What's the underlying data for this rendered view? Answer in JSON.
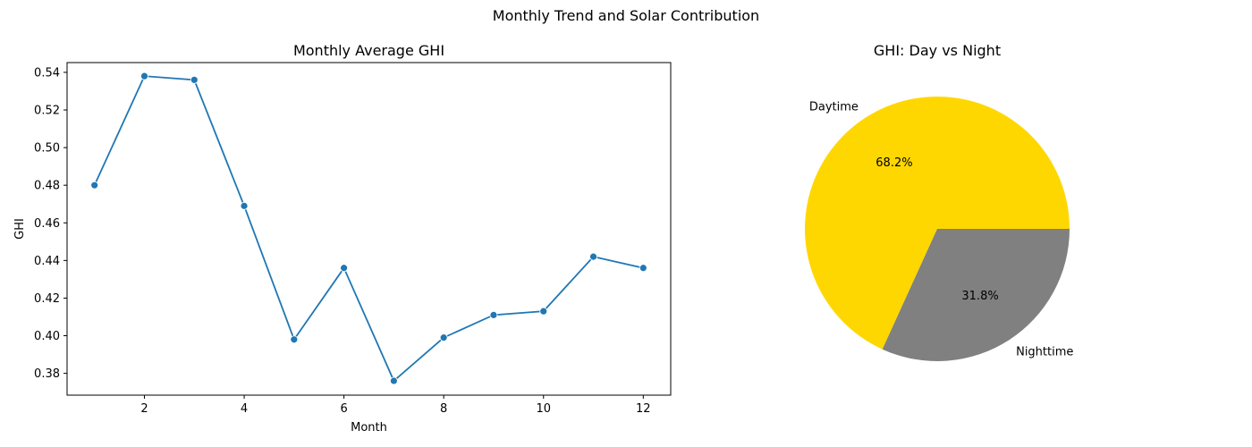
{
  "figure": {
    "suptitle": "Monthly Trend and Solar Contribution"
  },
  "chart_data": [
    {
      "type": "line",
      "title": "Monthly Average GHI",
      "xlabel": "Month",
      "ylabel": "GHI",
      "x": [
        1,
        2,
        3,
        4,
        5,
        6,
        7,
        8,
        9,
        10,
        11,
        12
      ],
      "series": [
        {
          "values": [
            0.48,
            0.538,
            0.536,
            0.469,
            0.398,
            0.436,
            0.376,
            0.399,
            0.411,
            0.413,
            0.442,
            0.436
          ],
          "color": "#1f77b4",
          "marker": "circle"
        }
      ],
      "xlim": [
        0.45,
        12.55
      ],
      "ylim": [
        0.3684,
        0.5452
      ],
      "xticks": [
        2,
        4,
        6,
        8,
        10,
        12
      ],
      "xtick_labels": [
        "2",
        "4",
        "6",
        "8",
        "10",
        "12"
      ],
      "yticks": [
        0.38,
        0.4,
        0.42,
        0.44,
        0.46,
        0.48,
        0.5,
        0.52,
        0.54
      ],
      "ytick_labels": [
        "0.38",
        "0.40",
        "0.42",
        "0.44",
        "0.46",
        "0.48",
        "0.50",
        "0.52",
        "0.54"
      ],
      "grid": false,
      "legend": "none"
    },
    {
      "type": "pie",
      "title": "GHI: Day vs Night",
      "labels": [
        "Daytime",
        "Nighttime"
      ],
      "values": [
        68.2,
        31.8
      ],
      "pct_labels": [
        "68.2%",
        "31.8%"
      ],
      "colors": [
        "#ffd700",
        "#808080"
      ],
      "legend": "none"
    }
  ]
}
